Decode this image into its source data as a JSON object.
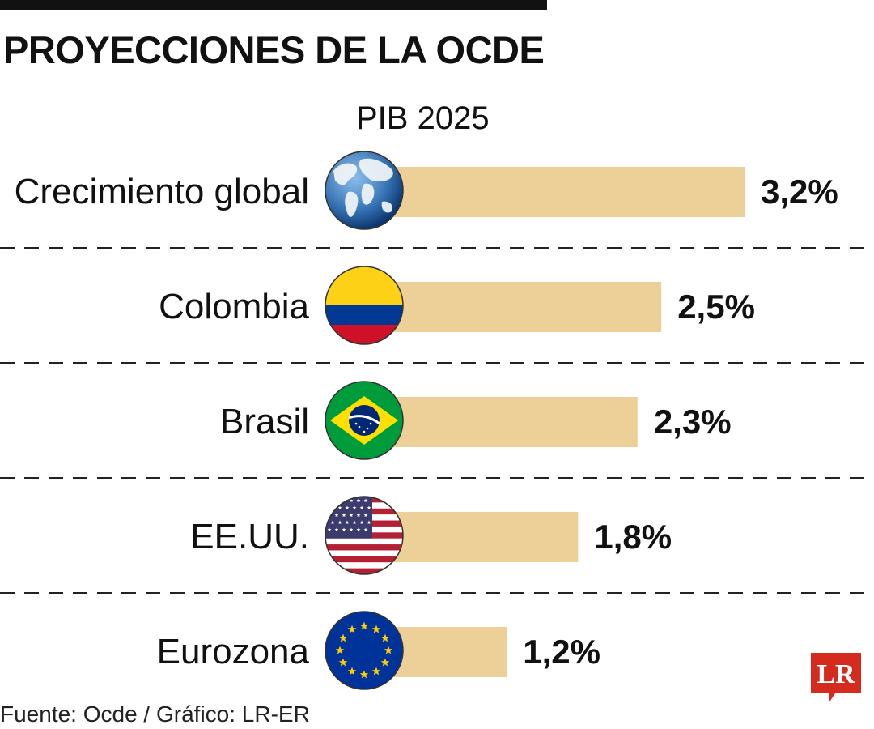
{
  "header": {
    "title": "PROYECCIONES DE LA OCDE",
    "subtitle": "PIB 2025"
  },
  "footer": {
    "source": "Fuente: Ocde / Gráfico: LR-ER",
    "logo_text": "LR"
  },
  "colors": {
    "bar": "#ecd098",
    "divider": "#222222",
    "logo": "#d52b1e"
  },
  "chart_data": {
    "type": "bar",
    "orientation": "horizontal",
    "title": "PROYECCIONES DE LA OCDE",
    "subtitle": "PIB 2025",
    "categories": [
      "Crecimiento global",
      "Colombia",
      "Brasil",
      "EE.UU.",
      "Eurozona"
    ],
    "values": [
      3.2,
      2.5,
      2.3,
      1.8,
      1.2
    ],
    "value_labels": [
      "3,2%",
      "2,5%",
      "2,3%",
      "1,8%",
      "1,2%"
    ],
    "icons": [
      "globe-icon",
      "colombia-flag-icon",
      "brazil-flag-icon",
      "usa-flag-icon",
      "eu-flag-icon"
    ],
    "xlim": [
      0,
      3.2
    ],
    "grid": false,
    "legend": "none"
  }
}
